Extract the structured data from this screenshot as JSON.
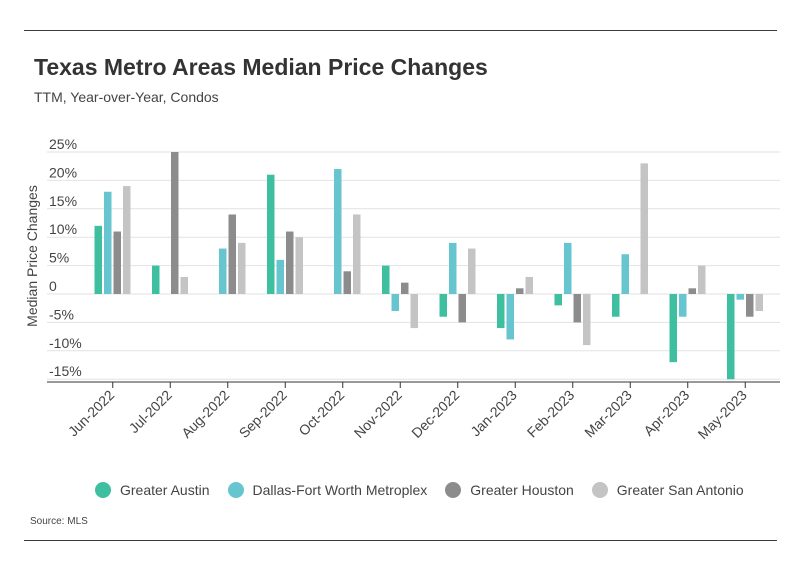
{
  "header": {
    "title": "Texas Metro Areas Median Price Changes",
    "subtitle": "TTM, Year-over-Year, Condos"
  },
  "footer": {
    "source": "Source:  MLS"
  },
  "colors": {
    "Greater Austin": "#3dbfa0",
    "Dallas-Fort Worth Metroplex": "#66c5ce",
    "Greater Houston": "#8c8c8c",
    "Greater San Antonio": "#c4c4c4"
  },
  "chart_data": {
    "type": "bar",
    "title": "Texas Metro Areas Median Price Changes",
    "subtitle": "TTM, Year-over-Year, Condos",
    "ylabel": "Median Price Changes",
    "xlabel": "",
    "ylim": [
      -15,
      25
    ],
    "y_ticks": [
      25,
      20,
      15,
      10,
      5,
      0,
      -5,
      -10,
      -15
    ],
    "y_tick_labels": [
      "25%",
      "20%",
      "15%",
      "10%",
      "5%",
      "0",
      "-5%",
      "-10%",
      "-15%"
    ],
    "grid": true,
    "legend_position": "bottom",
    "categories": [
      "Jun-2022",
      "Jul-2022",
      "Aug-2022",
      "Sep-2022",
      "Oct-2022",
      "Nov-2022",
      "Dec-2022",
      "Jan-2023",
      "Feb-2023",
      "Mar-2023",
      "Apr-2023",
      "May-2023"
    ],
    "series": [
      {
        "name": "Greater Austin",
        "values": [
          12,
          5,
          null,
          21,
          null,
          5,
          -4,
          -6,
          -2,
          -4,
          -12,
          -15
        ]
      },
      {
        "name": "Dallas-Fort Worth Metroplex",
        "values": [
          18,
          null,
          8,
          6,
          22,
          -3,
          9,
          -8,
          9,
          7,
          -4,
          -1
        ]
      },
      {
        "name": "Greater Houston",
        "values": [
          11,
          25,
          14,
          11,
          4,
          2,
          -5,
          1,
          -5,
          null,
          1,
          -4
        ]
      },
      {
        "name": "Greater San Antonio",
        "values": [
          19,
          3,
          9,
          10,
          14,
          -6,
          8,
          3,
          -9,
          23,
          5,
          -3
        ]
      }
    ]
  }
}
